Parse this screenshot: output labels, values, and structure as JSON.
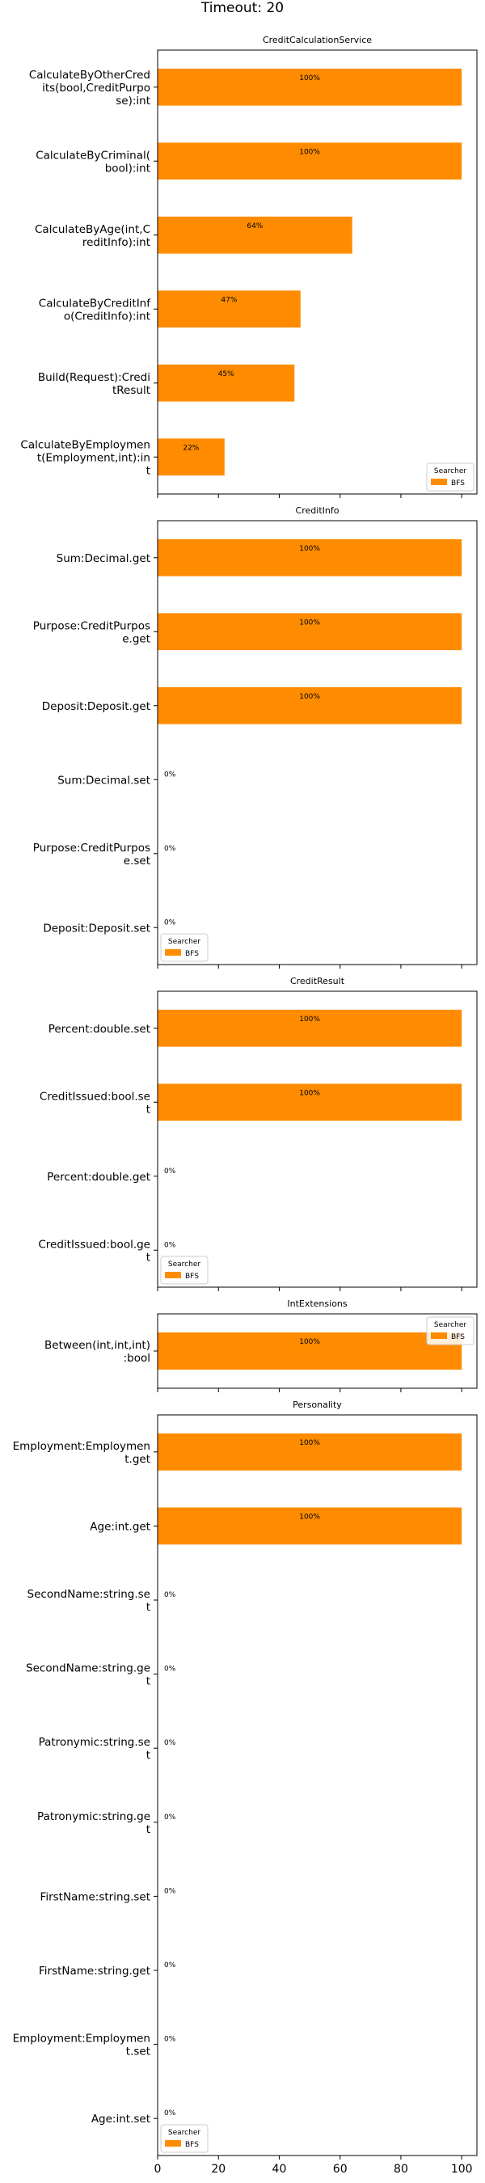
{
  "figure": {
    "suptitle": "Timeout: 20"
  },
  "chart_data": [
    {
      "type": "bar",
      "orientation": "horizontal",
      "title": "CreditCalculationService",
      "categories": [
        "CalculateByOtherCredits(bool,CreditPurpose):int",
        "CalculateByCriminal(bool):int",
        "CalculateByAge(int,CreditInfo):int",
        "CalculateByCreditInfo(CreditInfo):int",
        "Build(Request):CreditResult",
        "CalculateByEmployment(Employment,int):int"
      ],
      "category_lines": [
        [
          "CalculateByOtherCred",
          "its(bool,CreditPurpo",
          "se):int"
        ],
        [
          "CalculateByCriminal(",
          "bool):int"
        ],
        [
          "CalculateByAge(int,C",
          "reditInfo):int"
        ],
        [
          "CalculateByCreditInf",
          "o(CreditInfo):int"
        ],
        [
          "Build(Request):Credi",
          "tResult"
        ],
        [
          "CalculateByEmploymen",
          "t(Employment,int):in",
          "t"
        ]
      ],
      "series": [
        {
          "name": "BFS",
          "values": [
            100,
            100,
            64,
            47,
            45,
            22
          ]
        }
      ],
      "value_labels": [
        "100%",
        "100%",
        "64%",
        "47%",
        "45%",
        "22%"
      ],
      "legend": {
        "title": "Searcher",
        "placement": "lower-right"
      }
    },
    {
      "type": "bar",
      "orientation": "horizontal",
      "title": "CreditInfo",
      "categories": [
        "Sum:Decimal.get",
        "Purpose:CreditPurpose.get",
        "Deposit:Deposit.get",
        "Sum:Decimal.set",
        "Purpose:CreditPurpose.set",
        "Deposit:Deposit.set"
      ],
      "category_lines": [
        [
          "Sum:Decimal.get"
        ],
        [
          "Purpose:CreditPurpos",
          "e.get"
        ],
        [
          "Deposit:Deposit.get"
        ],
        [
          "Sum:Decimal.set"
        ],
        [
          "Purpose:CreditPurpos",
          "e.set"
        ],
        [
          "Deposit:Deposit.set"
        ]
      ],
      "series": [
        {
          "name": "BFS",
          "values": [
            100,
            100,
            100,
            0,
            0,
            0
          ]
        }
      ],
      "value_labels": [
        "100%",
        "100%",
        "100%",
        "0%",
        "0%",
        "0%"
      ],
      "legend": {
        "title": "Searcher",
        "placement": "lower-left"
      }
    },
    {
      "type": "bar",
      "orientation": "horizontal",
      "title": "CreditResult",
      "categories": [
        "Percent:double.set",
        "CreditIssued:bool.set",
        "Percent:double.get",
        "CreditIssued:bool.get"
      ],
      "category_lines": [
        [
          "Percent:double.set"
        ],
        [
          "CreditIssued:bool.se",
          "t"
        ],
        [
          "Percent:double.get"
        ],
        [
          "CreditIssued:bool.ge",
          "t"
        ]
      ],
      "series": [
        {
          "name": "BFS",
          "values": [
            100,
            100,
            0,
            0
          ]
        }
      ],
      "value_labels": [
        "100%",
        "100%",
        "0%",
        "0%"
      ],
      "legend": {
        "title": "Searcher",
        "placement": "lower-left"
      }
    },
    {
      "type": "bar",
      "orientation": "horizontal",
      "title": "IntExtensions",
      "categories": [
        "Between(int,int,int):bool"
      ],
      "category_lines": [
        [
          "Between(int,int,int)",
          ":bool"
        ]
      ],
      "series": [
        {
          "name": "BFS",
          "values": [
            100
          ]
        }
      ],
      "value_labels": [
        "100%"
      ],
      "legend": {
        "title": "Searcher",
        "placement": "upper-right"
      }
    },
    {
      "type": "bar",
      "orientation": "horizontal",
      "title": "Personality",
      "categories": [
        "Employment:Employment.get",
        "Age:int.get",
        "SecondName:string.set",
        "SecondName:string.get",
        "Patronymic:string.set",
        "Patronymic:string.get",
        "FirstName:string.set",
        "FirstName:string.get",
        "Employment:Employment.set",
        "Age:int.set"
      ],
      "category_lines": [
        [
          "Employment:Employmen",
          "t.get"
        ],
        [
          "Age:int.get"
        ],
        [
          "SecondName:string.se",
          "t"
        ],
        [
          "SecondName:string.ge",
          "t"
        ],
        [
          "Patronymic:string.se",
          "t"
        ],
        [
          "Patronymic:string.ge",
          "t"
        ],
        [
          "FirstName:string.set"
        ],
        [
          "FirstName:string.get"
        ],
        [
          "Employment:Employmen",
          "t.set"
        ],
        [
          "Age:int.set"
        ]
      ],
      "series": [
        {
          "name": "BFS",
          "values": [
            100,
            100,
            0,
            0,
            0,
            0,
            0,
            0,
            0,
            0
          ]
        }
      ],
      "value_labels": [
        "100%",
        "100%",
        "0%",
        "0%",
        "0%",
        "0%",
        "0%",
        "0%",
        "0%",
        "0%"
      ],
      "legend": {
        "title": "Searcher",
        "placement": "lower-left"
      },
      "x_ticks": [
        "0",
        "20",
        "40",
        "60",
        "80",
        "100"
      ]
    }
  ],
  "shared": {
    "xlim": [
      0,
      105
    ],
    "tick_values": [
      0,
      20,
      40,
      60,
      80,
      100
    ],
    "bar_color": "#ff8c00"
  }
}
